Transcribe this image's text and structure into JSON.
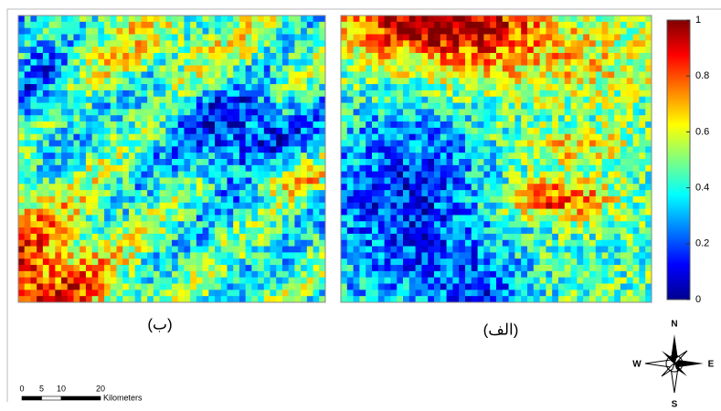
{
  "panels": [
    {
      "label": "(ب)"
    },
    {
      "label": "(الف)"
    }
  ],
  "colorbar": {
    "lim": [
      0,
      1
    ],
    "ticks": [
      0,
      0.2,
      0.4,
      0.6,
      0.8,
      1
    ]
  },
  "compass": {
    "n": "N",
    "s": "S",
    "e": "E",
    "w": "W"
  },
  "scale_bar": {
    "ticks": [
      0,
      5,
      10,
      20
    ],
    "unit": "Kilometers"
  }
}
